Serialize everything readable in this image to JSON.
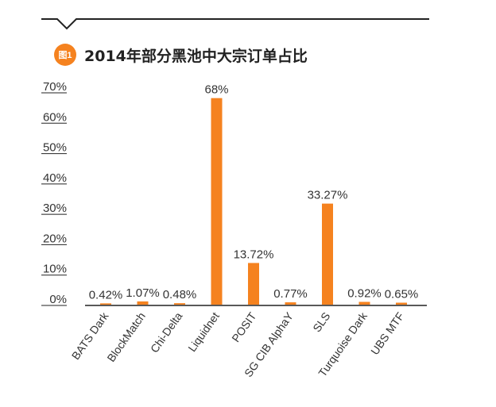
{
  "figure": {
    "badge": "图1",
    "title": "2014年部分黑池中大宗订单占比"
  },
  "colors": {
    "bar": "#f5821f",
    "badge": "#f5821f",
    "line": "#222222",
    "text": "#333333"
  },
  "chart_data": {
    "type": "bar",
    "title": "2014年部分黑池中大宗订单占比",
    "xlabel": "",
    "ylabel": "",
    "ylim": [
      0,
      70
    ],
    "y_ticks": [
      "0%",
      "10%",
      "20%",
      "30%",
      "40%",
      "50%",
      "60%",
      "70%"
    ],
    "grid": false,
    "legend": "none",
    "categories": [
      "BATS Dark",
      "BlockMatch",
      "Chi-Delta",
      "Liquidnet",
      "POSIT",
      "SG CIB AlphaY",
      "SLS",
      "Turquoise Dark",
      "UBS MTF"
    ],
    "values": [
      0.42,
      1.07,
      0.48,
      68,
      13.72,
      0.77,
      33.27,
      0.92,
      0.65
    ],
    "data_labels": [
      "0.42%",
      "1.07%",
      "0.48%",
      "68%",
      "13.72%",
      "0.77%",
      "33.27%",
      "0.92%",
      "0.65%"
    ]
  }
}
